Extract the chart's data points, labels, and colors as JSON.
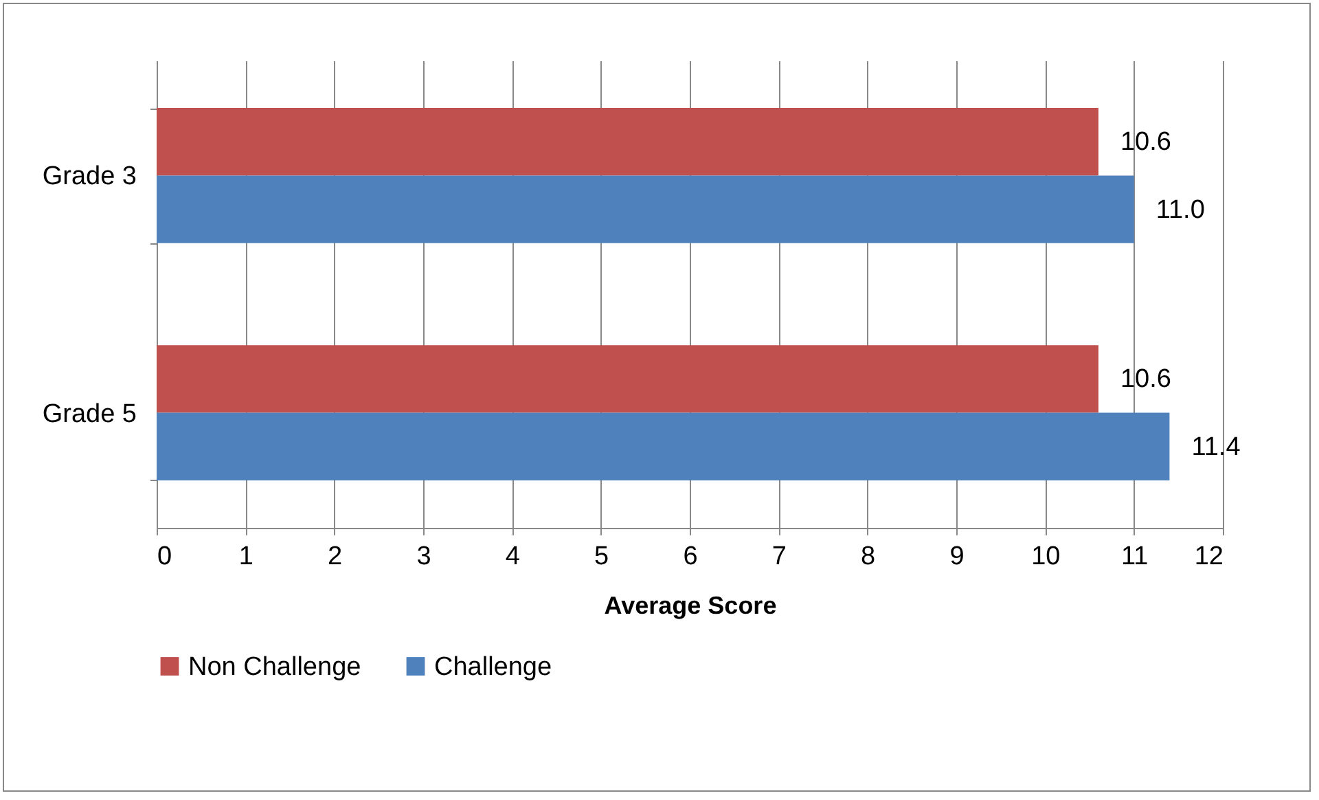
{
  "chart_data": {
    "type": "bar",
    "orientation": "horizontal",
    "xlabel": "Average Score",
    "categories": [
      "Grade 3",
      "Grade 5"
    ],
    "series": [
      {
        "name": "Non Challenge",
        "color": "#c0504d",
        "values": [
          10.6,
          10.6
        ],
        "value_labels": [
          "10.6",
          "10.6"
        ]
      },
      {
        "name": "Challenge",
        "color": "#4f81bd",
        "values": [
          11.0,
          11.4
        ],
        "value_labels": [
          "11.0",
          "11.4"
        ]
      }
    ],
    "xlim": [
      0,
      12
    ],
    "xticks": [
      0,
      1,
      2,
      3,
      4,
      5,
      6,
      7,
      8,
      9,
      10,
      11,
      12
    ],
    "grid": "x",
    "legend": "bottom left"
  }
}
